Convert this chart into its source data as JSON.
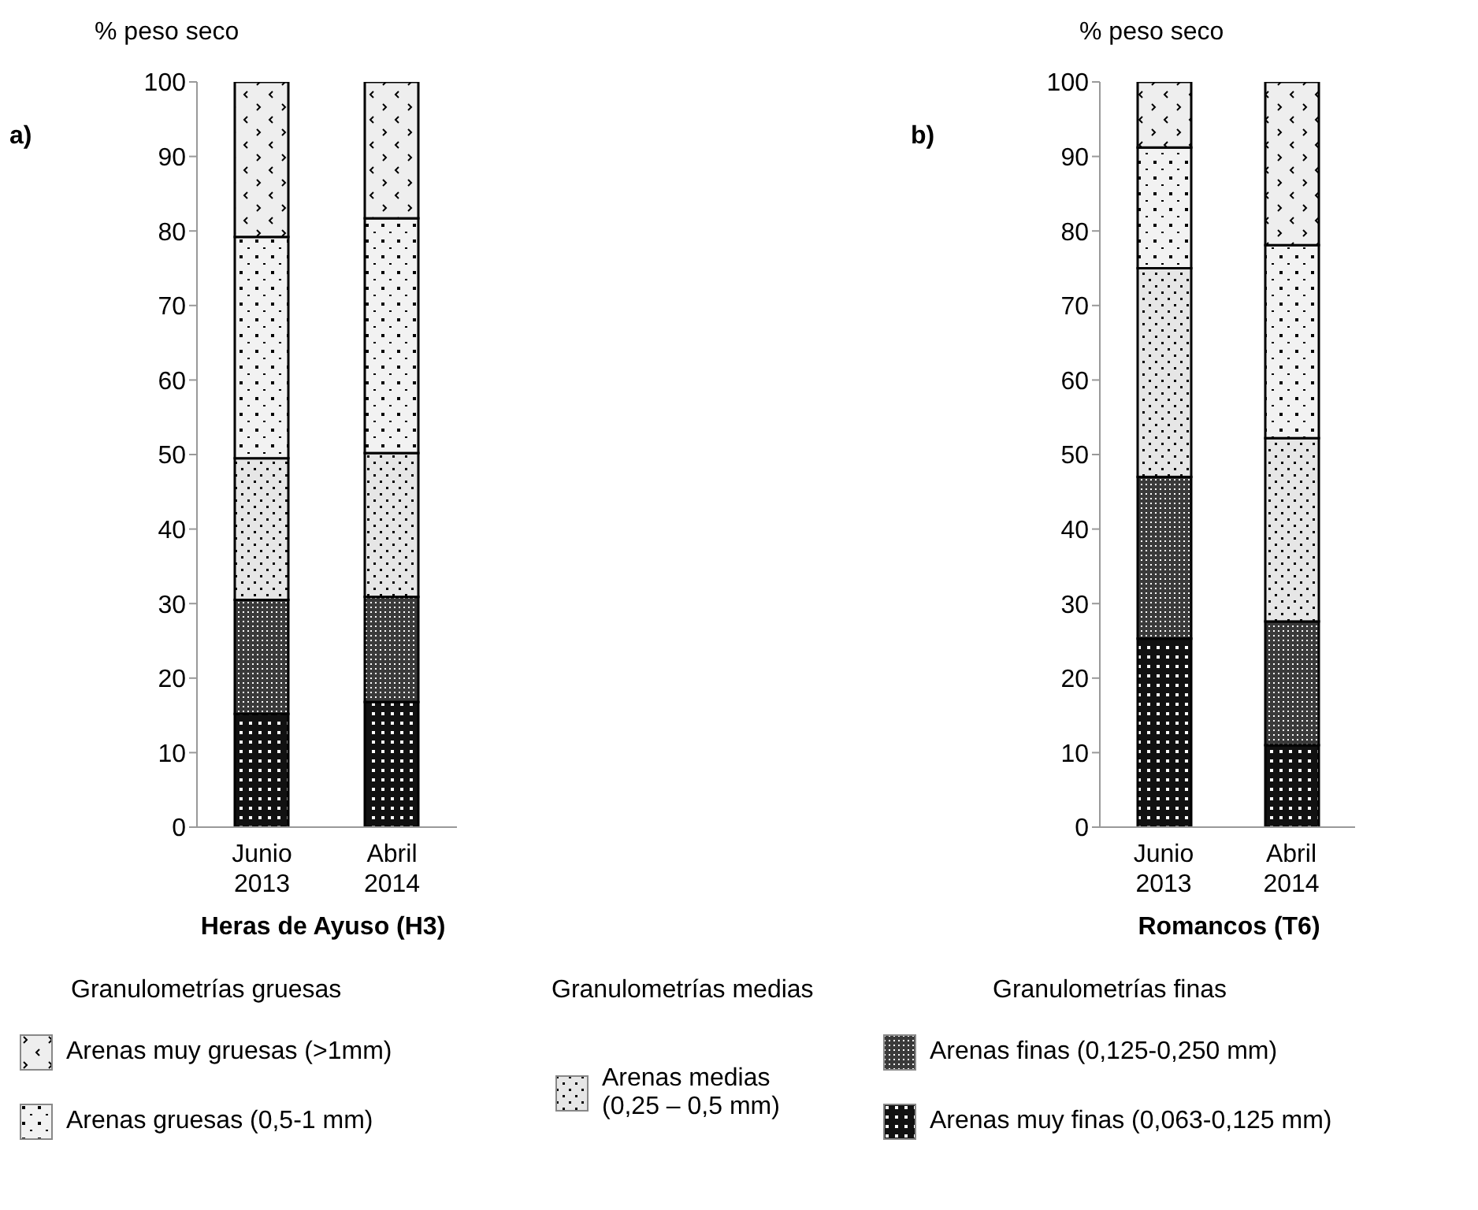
{
  "chart_data": [
    {
      "type": "bar",
      "stacked": true,
      "ylabel": "% peso seco",
      "xlabel": "Heras de Ayuso (H3)",
      "categories": [
        "Junio 2013",
        "Abril 2014"
      ],
      "ylim": [
        0,
        100
      ],
      "yticks": [
        0,
        10,
        20,
        30,
        40,
        50,
        60,
        70,
        80,
        90,
        100
      ],
      "grid": false,
      "legend": "bottom",
      "annotations": [
        "a)",
        "Granulometrías gruesas",
        "Granulometrías medias",
        "Granulometrías finas"
      ],
      "series": [
        {
          "name": "Arenas muy finas (0,063-0,125 mm)",
          "color": "#111111",
          "values": [
            15.2,
            16.8
          ]
        },
        {
          "name": "Arenas finas (0,125-0,250 mm)",
          "color": "#3a3a3a",
          "values": [
            15.3,
            14.1
          ]
        },
        {
          "name": "Arenas medias (0,25 – 0,5 mm)",
          "color": "#e6e6e6",
          "values": [
            19,
            19.3
          ]
        },
        {
          "name": "Arenas gruesas (0,5-1 mm)",
          "color": "#f2f2f2",
          "values": [
            29.7,
            31.5
          ]
        },
        {
          "name": "Arenas muy gruesas (>1mm)",
          "color": "#eeeeee",
          "values": [
            20.8,
            18.3
          ]
        }
      ]
    },
    {
      "type": "bar",
      "stacked": true,
      "ylabel": "% peso seco",
      "xlabel": "Romancos (T6)",
      "categories": [
        "Junio 2013",
        "Abril 2014"
      ],
      "ylim": [
        0,
        100
      ],
      "yticks": [
        0,
        10,
        20,
        30,
        40,
        50,
        60,
        70,
        80,
        90,
        100
      ],
      "grid": false,
      "annotations": [
        "b)"
      ],
      "series": [
        {
          "color": "#111111",
          "values": [
            25.3,
            11
          ]
        },
        {
          "color": "#3a3a3a",
          "values": [
            21.7,
            16.6
          ]
        },
        {
          "color": "#e6e6e6",
          "values": [
            28,
            24.6
          ]
        },
        {
          "color": "#f2f2f2",
          "values": [
            16.2,
            25.9
          ]
        },
        {
          "color": "#eeeeee",
          "values": [
            8.8,
            21.9
          ]
        }
      ]
    }
  ]
}
